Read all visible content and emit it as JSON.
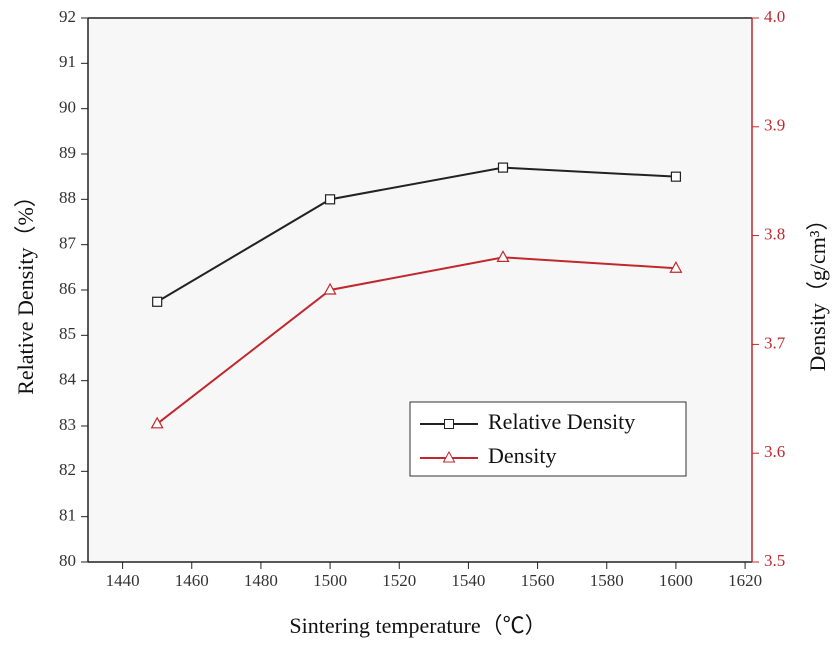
{
  "chart_data": {
    "type": "line",
    "x_label": "Sintering temperature（℃）",
    "y_label": "Relative Density（%）",
    "y2_label": "Density（g/cm³）",
    "x": [
      1450,
      1500,
      1550,
      1600
    ],
    "xlim": [
      1430,
      1622
    ],
    "xticks": [
      1440,
      1460,
      1480,
      1500,
      1520,
      1540,
      1560,
      1580,
      1600,
      1620
    ],
    "ylim": [
      80,
      92
    ],
    "yticks": [
      80,
      81,
      82,
      83,
      84,
      85,
      86,
      87,
      88,
      89,
      90,
      91,
      92
    ],
    "y2lim": [
      3.5,
      4.0
    ],
    "y2ticks": [
      3.5,
      3.6,
      3.7,
      3.8,
      3.9,
      {
        "value": 4,
        "label": "4.0"
      }
    ],
    "y2_color": "#c0282d",
    "legend": "lower right",
    "series": [
      {
        "name": "Relative Density",
        "color": "#222222",
        "marker": "square",
        "values": [
          85.74,
          88.0,
          88.7,
          88.5
        ]
      },
      {
        "name": "Density",
        "color": "#c0282d",
        "marker": "triangle",
        "axis": "y2",
        "values": [
          3.627,
          3.75,
          3.78,
          3.77
        ]
      }
    ]
  }
}
